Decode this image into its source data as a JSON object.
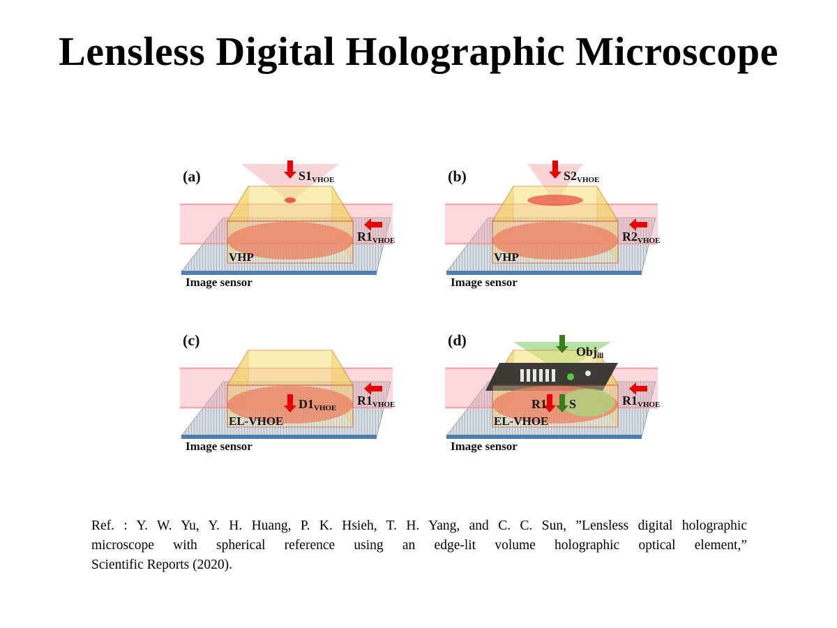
{
  "slide": {
    "title": "Lensless Digital Holographic Microscope"
  },
  "figure": {
    "panels": [
      {
        "label": "(a)",
        "top_beam": {
          "main": "S1",
          "sub": "VHOE"
        },
        "side_beam": {
          "main": "R1",
          "sub": "VHOE"
        },
        "element": "VHP",
        "sensor": "Image sensor"
      },
      {
        "label": "(b)",
        "top_beam": {
          "main": "S2",
          "sub": "VHOE"
        },
        "side_beam": {
          "main": "R2",
          "sub": "VHOE"
        },
        "element": "VHP",
        "sensor": "Image sensor"
      },
      {
        "label": "(c)",
        "inner_beam": {
          "main": "D1",
          "sub": "VHOE"
        },
        "side_beam": {
          "main": "R1",
          "sub": "VHOE"
        },
        "element": "EL-VHOE",
        "sensor": "Image sensor"
      },
      {
        "label": "(d)",
        "top_beam": {
          "main": "Obj",
          "sub": "ill"
        },
        "inner_labels": [
          "R1",
          "S"
        ],
        "side_beam": {
          "main": "R1",
          "sub": "VHOE"
        },
        "element": "EL-VHOE",
        "sensor": "Image sensor"
      }
    ],
    "colors": {
      "reference_beam": "#f4a9b0",
      "signal_cone": "#f6c2c6",
      "illumination_cone": "#9fd88a",
      "arrow_red": "#e60000",
      "arrow_green": "#3a7d1e",
      "element_fill": "#f5e27a",
      "element_edge": "#c0392b",
      "sensor": "#4f7fb0"
    }
  },
  "reference": {
    "line1": "Ref. : Y. W. Yu, Y. H. Huang, P. K. Hsieh, T. H. Yang, and C. C. Sun, ”Lensless digital holographic",
    "line2": "microscope with spherical reference using an edge-lit volume holographic optical element,”",
    "line3": "Scientific Reports (2020)."
  }
}
